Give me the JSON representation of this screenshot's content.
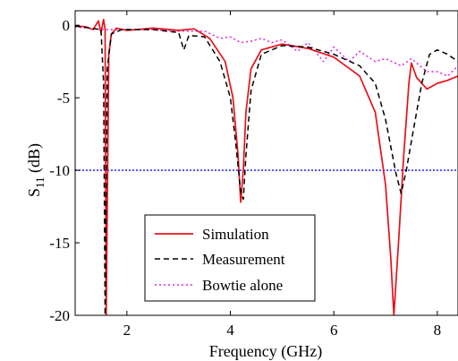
{
  "chart_data": {
    "type": "line",
    "title": "",
    "xlabel": "Frequency (GHz)",
    "ylabel": "S11 (dB)",
    "ylabel_main": "S",
    "ylabel_sub": "11",
    "ylabel_unit": " (dB)",
    "xlim": [
      1.0,
      8.4
    ],
    "ylim": [
      -20,
      1
    ],
    "x_ticks": [
      2,
      4,
      6,
      8
    ],
    "x_tick_labels": [
      "2",
      "4",
      "6",
      "8"
    ],
    "y_ticks": [
      0,
      -5,
      -10,
      -15,
      -20
    ],
    "y_tick_labels": [
      "0",
      "-5",
      "-10",
      "-15",
      "-20"
    ],
    "grid": false,
    "legend_position": "lower-center",
    "reference_line": {
      "y": -10,
      "color": "#3333ff",
      "style": "dotted"
    },
    "series": [
      {
        "name": "Simulation",
        "color": "#e8101a",
        "dash": "solid",
        "points": [
          [
            1.0,
            -0.05
          ],
          [
            1.2,
            -0.1
          ],
          [
            1.35,
            -0.3
          ],
          [
            1.45,
            0.3
          ],
          [
            1.5,
            -0.5
          ],
          [
            1.55,
            0.4
          ],
          [
            1.58,
            -0.3
          ],
          [
            1.6,
            -20
          ],
          [
            1.65,
            -2
          ],
          [
            1.7,
            -0.6
          ],
          [
            1.8,
            -0.2
          ],
          [
            2.0,
            -0.35
          ],
          [
            2.2,
            -0.3
          ],
          [
            2.5,
            -0.2
          ],
          [
            3.0,
            -0.35
          ],
          [
            3.3,
            -0.25
          ],
          [
            3.6,
            -0.9
          ],
          [
            3.9,
            -2.5
          ],
          [
            4.05,
            -5
          ],
          [
            4.15,
            -9
          ],
          [
            4.2,
            -12.2
          ],
          [
            4.25,
            -10
          ],
          [
            4.3,
            -6
          ],
          [
            4.4,
            -3
          ],
          [
            4.6,
            -1.7
          ],
          [
            5.0,
            -1.3
          ],
          [
            5.5,
            -1.6
          ],
          [
            6.0,
            -2.2
          ],
          [
            6.5,
            -3.5
          ],
          [
            6.8,
            -6
          ],
          [
            7.0,
            -11
          ],
          [
            7.1,
            -16
          ],
          [
            7.16,
            -20
          ],
          [
            7.25,
            -15
          ],
          [
            7.35,
            -9
          ],
          [
            7.45,
            -4
          ],
          [
            7.5,
            -2.6
          ],
          [
            7.6,
            -3.6
          ],
          [
            7.8,
            -4.4
          ],
          [
            8.0,
            -4.0
          ],
          [
            8.2,
            -3.8
          ],
          [
            8.4,
            -3.5
          ]
        ]
      },
      {
        "name": "Measurement",
        "color": "#000000",
        "dash": "dashed",
        "points": [
          [
            1.0,
            -0.05
          ],
          [
            1.3,
            -0.2
          ],
          [
            1.5,
            -0.3
          ],
          [
            1.55,
            -4
          ],
          [
            1.58,
            -20
          ],
          [
            1.62,
            -3
          ],
          [
            1.7,
            -0.6
          ],
          [
            1.9,
            -0.3
          ],
          [
            2.5,
            -0.3
          ],
          [
            3.0,
            -0.5
          ],
          [
            3.1,
            -1.7
          ],
          [
            3.2,
            -0.7
          ],
          [
            3.5,
            -0.8
          ],
          [
            3.8,
            -2.5
          ],
          [
            4.0,
            -5
          ],
          [
            4.1,
            -8
          ],
          [
            4.2,
            -11.5
          ],
          [
            4.25,
            -12
          ],
          [
            4.3,
            -9
          ],
          [
            4.4,
            -4.5
          ],
          [
            4.6,
            -2
          ],
          [
            5.0,
            -1.4
          ],
          [
            5.5,
            -1.5
          ],
          [
            6.0,
            -2
          ],
          [
            6.5,
            -2.8
          ],
          [
            6.8,
            -4
          ],
          [
            7.0,
            -6.5
          ],
          [
            7.2,
            -10.2
          ],
          [
            7.3,
            -11.6
          ],
          [
            7.4,
            -10
          ],
          [
            7.55,
            -7
          ],
          [
            7.7,
            -4
          ],
          [
            7.85,
            -2
          ],
          [
            8.0,
            -1.7
          ],
          [
            8.2,
            -2
          ],
          [
            8.4,
            -2.5
          ]
        ]
      },
      {
        "name": "Bowtie alone",
        "color": "#e020e0",
        "dash": "dotted",
        "points": [
          [
            1.0,
            -0.1
          ],
          [
            1.5,
            -0.3
          ],
          [
            2.0,
            -0.3
          ],
          [
            2.5,
            -0.3
          ],
          [
            3.0,
            -0.4
          ],
          [
            3.5,
            -0.4
          ],
          [
            3.8,
            -0.9
          ],
          [
            4.0,
            -0.8
          ],
          [
            4.2,
            -1.2
          ],
          [
            4.4,
            -1.1
          ],
          [
            4.6,
            -0.9
          ],
          [
            4.8,
            -1.2
          ],
          [
            5.0,
            -1.0
          ],
          [
            5.3,
            -1.8
          ],
          [
            5.5,
            -1.2
          ],
          [
            5.8,
            -2.5
          ],
          [
            6.0,
            -1.5
          ],
          [
            6.3,
            -2.5
          ],
          [
            6.5,
            -1.8
          ],
          [
            6.8,
            -2.5
          ],
          [
            7.0,
            -2.3
          ],
          [
            7.3,
            -2.8
          ],
          [
            7.5,
            -2.3
          ],
          [
            7.8,
            -3.2
          ],
          [
            8.0,
            -3.2
          ],
          [
            8.2,
            -3.5
          ],
          [
            8.4,
            -2.8
          ]
        ]
      }
    ]
  }
}
